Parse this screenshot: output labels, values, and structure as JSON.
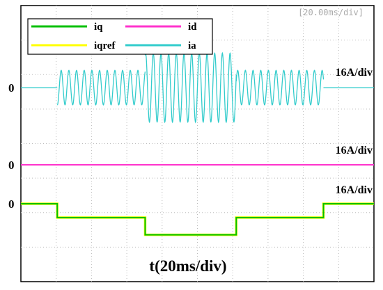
{
  "chart_data": {
    "type": "scope",
    "time_scale_label": "[20.00ms/div]",
    "xlabel": "t(20ms/div)",
    "xlim": [
      0,
      10
    ],
    "channels": [
      {
        "zero_label": "0",
        "scale_label": "16A/div"
      },
      {
        "zero_label": "0",
        "scale_label": "16A/div"
      },
      {
        "zero_label": "0",
        "scale_label": "16A/div"
      }
    ],
    "series": [
      {
        "name": "iq",
        "color": "#00c000",
        "channel": 2,
        "x": [
          0,
          1.03,
          1.03,
          3.52,
          3.52,
          6.1,
          6.1,
          8.57,
          8.57,
          10
        ],
        "values": [
          0,
          0,
          -0.4,
          -0.4,
          -0.9,
          -0.9,
          -0.4,
          -0.4,
          0,
          0
        ]
      },
      {
        "name": "iqref",
        "color": "#ffff00",
        "channel": 2,
        "x": [
          0,
          1.03,
          1.03,
          3.52,
          3.52,
          6.1,
          6.1,
          8.57,
          8.57,
          10
        ],
        "values": [
          0,
          0,
          -0.4,
          -0.4,
          -0.9,
          -0.9,
          -0.4,
          -0.4,
          0,
          0
        ]
      },
      {
        "name": "id",
        "color": "#ff33cc",
        "channel": 1,
        "x": [
          0,
          10
        ],
        "values": [
          0,
          0
        ]
      },
      {
        "name": "ia",
        "color": "#33cccc",
        "channel": 0,
        "x": [
          0,
          1.03,
          3.52,
          6.1,
          8.57,
          10
        ],
        "amplitude": [
          0,
          0.5,
          1.0,
          0.5,
          0
        ],
        "cycles_per_div": 4.6
      }
    ]
  }
}
